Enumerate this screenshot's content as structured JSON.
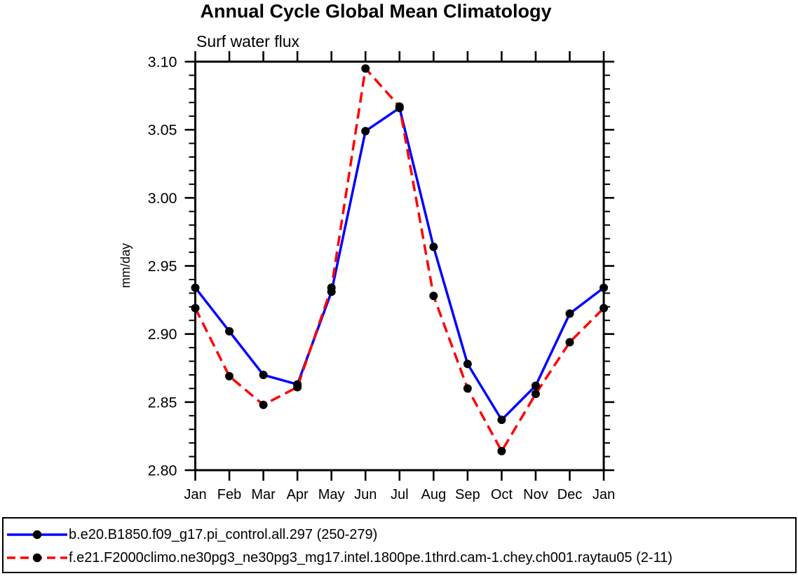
{
  "chart_data": {
    "type": "line",
    "title": "Annual Cycle Global Mean Climatology",
    "subtitle": "Surf water flux",
    "ylabel": "mm/day",
    "xlabel": "",
    "categories": [
      "Jan",
      "Feb",
      "Mar",
      "Apr",
      "May",
      "Jun",
      "Jul",
      "Aug",
      "Sep",
      "Oct",
      "Nov",
      "Dec",
      "Jan"
    ],
    "ylim": [
      2.8,
      3.1
    ],
    "y_major_step": 0.05,
    "y_minor_step": 0.01,
    "y_tick_labels": [
      "2.80",
      "2.85",
      "2.90",
      "2.95",
      "3.00",
      "3.05",
      "3.10"
    ],
    "grid": "off",
    "legend_position": "bottom-box",
    "axis_color": "#000000",
    "marker": "filled-circle",
    "marker_color": "#000000",
    "series": [
      {
        "name": "b.e20.B1850.f09_g17.pi_control.all.297 (250-279)",
        "color": "#0000ff",
        "line_style": "solid",
        "values": [
          2.934,
          2.902,
          2.87,
          2.863,
          2.931,
          3.049,
          3.066,
          2.964,
          2.878,
          2.837,
          2.862,
          2.915,
          2.934
        ]
      },
      {
        "name": "f.e21.F2000climo.ne30pg3_ne30pg3_mg17.intel.1800pe.1thrd.cam-1.chey.ch001.raytau05 (2-11)",
        "color": "#ff0000",
        "line_style": "dashed",
        "values": [
          2.919,
          2.869,
          2.848,
          2.861,
          2.934,
          3.095,
          3.067,
          2.928,
          2.86,
          2.814,
          2.856,
          2.894,
          2.919
        ]
      }
    ]
  }
}
